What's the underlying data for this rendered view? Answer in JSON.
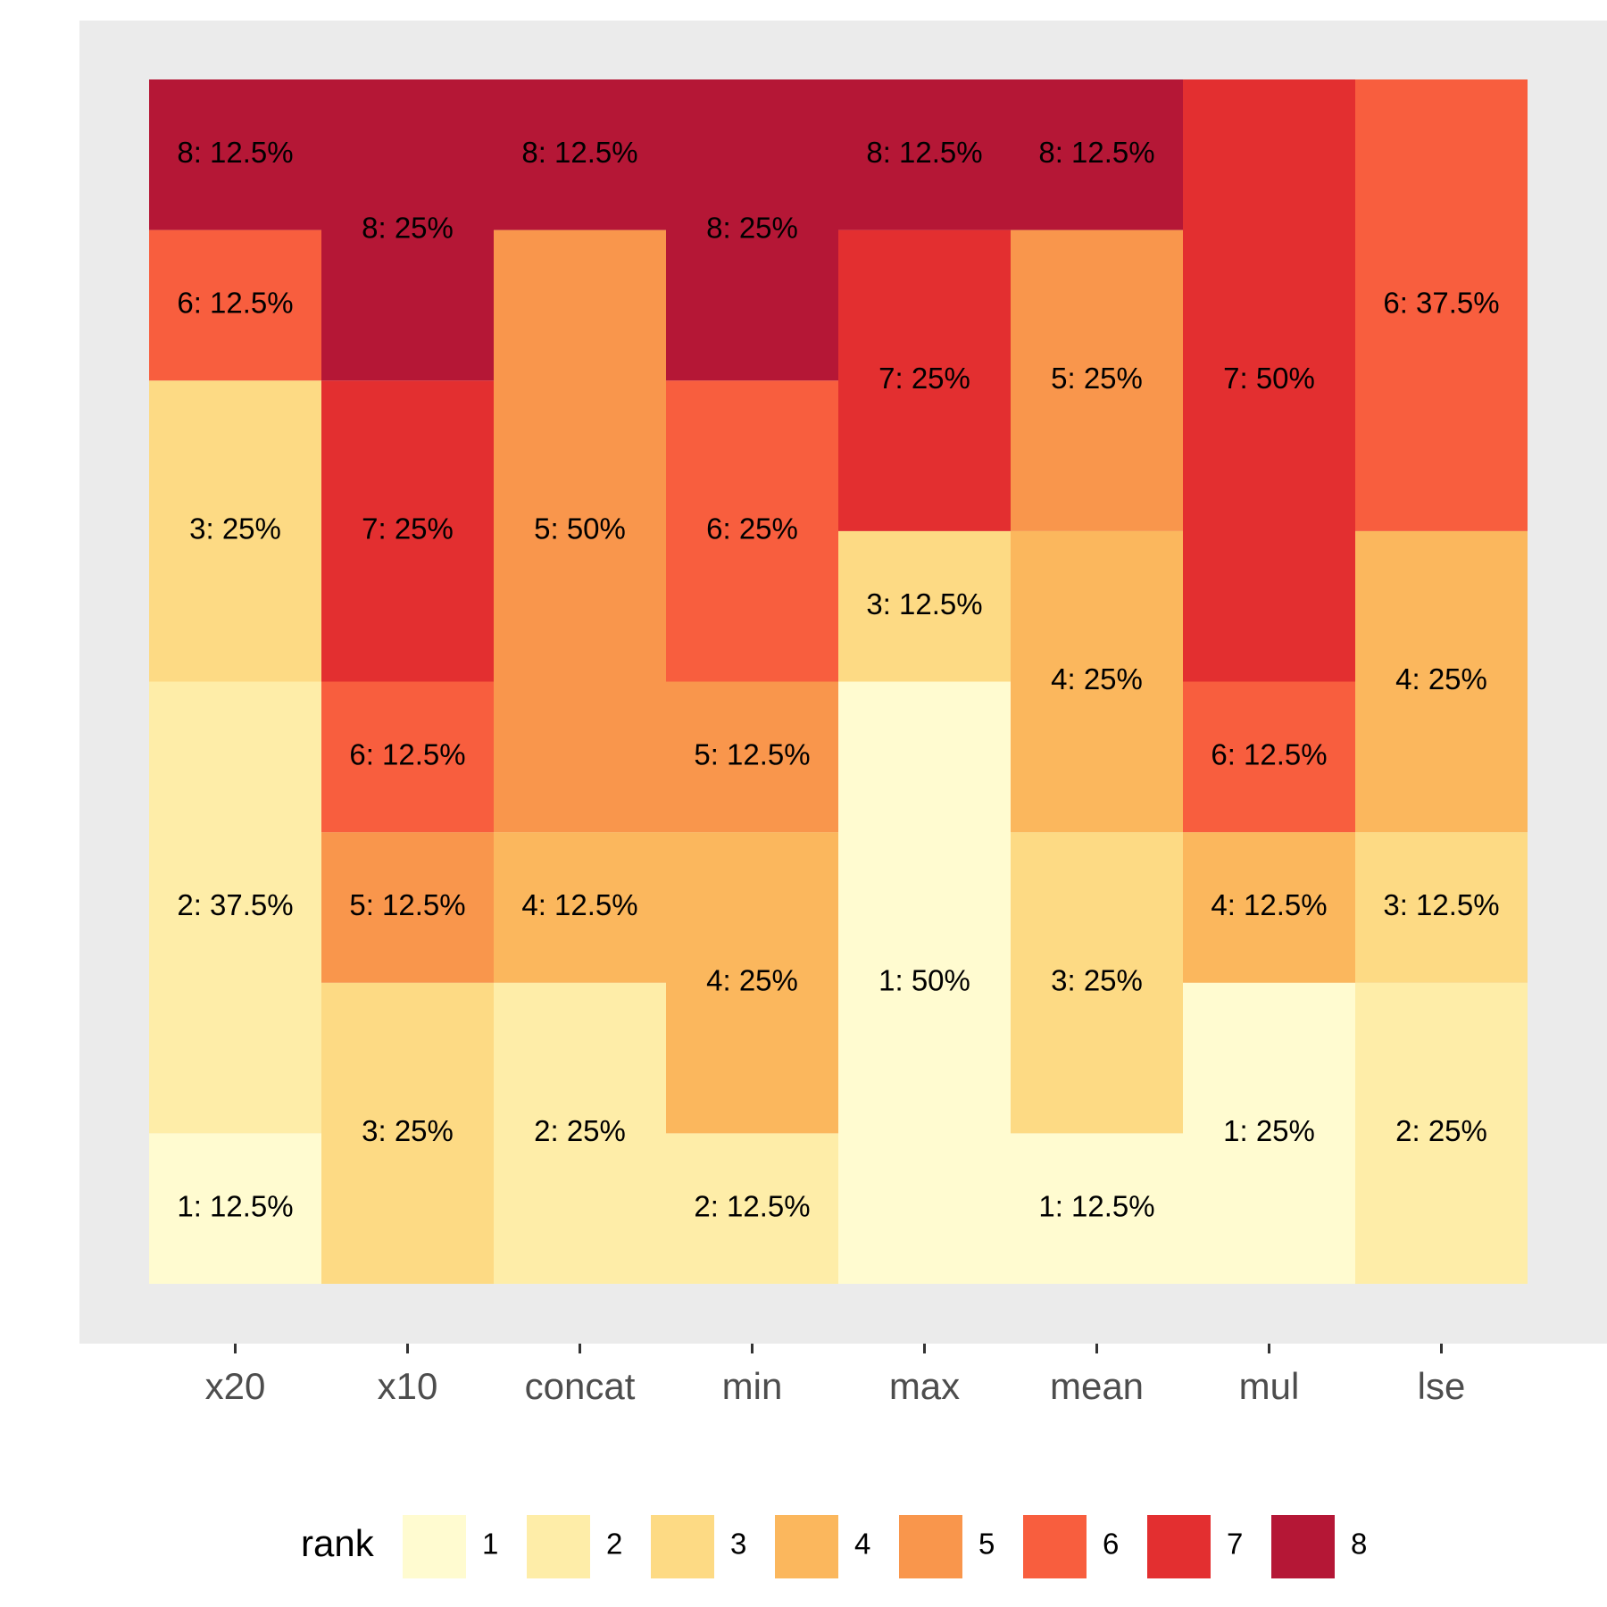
{
  "chart_data": {
    "type": "bar",
    "stacked": true,
    "value_unit": "%",
    "ylim": [
      0,
      100
    ],
    "grid": false,
    "legend_position": "bottom",
    "title": "",
    "xlabel": "",
    "ylabel": "",
    "categories": [
      "x20",
      "x10",
      "concat",
      "min",
      "max",
      "mean",
      "mul",
      "lse"
    ],
    "legend": {
      "title": "rank",
      "entries": [
        "1",
        "2",
        "3",
        "4",
        "5",
        "6",
        "7",
        "8"
      ]
    },
    "colors": {
      "1": "#FFFBD0",
      "2": "#FEEDA8",
      "3": "#FDDA84",
      "4": "#FBB75D",
      "5": "#F9964C",
      "6": "#F85E3E",
      "7": "#E32F30",
      "8": "#B51736",
      "panel_background": "#EBEBEB",
      "axis_text": "#4D4D4D"
    },
    "bars": [
      {
        "category": "x20",
        "segments": [
          {
            "rank": 1,
            "value": 12.5,
            "label": "1: 12.5%"
          },
          {
            "rank": 2,
            "value": 37.5,
            "label": "2: 37.5%"
          },
          {
            "rank": 3,
            "value": 25,
            "label": "3: 25%"
          },
          {
            "rank": 6,
            "value": 12.5,
            "label": "6: 12.5%"
          },
          {
            "rank": 8,
            "value": 12.5,
            "label": "8: 12.5%"
          }
        ]
      },
      {
        "category": "x10",
        "segments": [
          {
            "rank": 3,
            "value": 25,
            "label": "3: 25%"
          },
          {
            "rank": 5,
            "value": 12.5,
            "label": "5: 12.5%"
          },
          {
            "rank": 6,
            "value": 12.5,
            "label": "6: 12.5%"
          },
          {
            "rank": 7,
            "value": 25,
            "label": "7: 25%"
          },
          {
            "rank": 8,
            "value": 25,
            "label": "8: 25%"
          }
        ]
      },
      {
        "category": "concat",
        "segments": [
          {
            "rank": 2,
            "value": 25,
            "label": "2: 25%"
          },
          {
            "rank": 4,
            "value": 12.5,
            "label": "4: 12.5%"
          },
          {
            "rank": 5,
            "value": 50,
            "label": "5: 50%"
          },
          {
            "rank": 8,
            "value": 12.5,
            "label": "8: 12.5%"
          }
        ]
      },
      {
        "category": "min",
        "segments": [
          {
            "rank": 2,
            "value": 12.5,
            "label": "2: 12.5%"
          },
          {
            "rank": 4,
            "value": 25,
            "label": "4: 25%"
          },
          {
            "rank": 5,
            "value": 12.5,
            "label": "5: 12.5%"
          },
          {
            "rank": 6,
            "value": 25,
            "label": "6: 25%"
          },
          {
            "rank": 8,
            "value": 25,
            "label": "8: 25%"
          }
        ]
      },
      {
        "category": "max",
        "segments": [
          {
            "rank": 1,
            "value": 50,
            "label": "1: 50%"
          },
          {
            "rank": 3,
            "value": 12.5,
            "label": "3: 12.5%"
          },
          {
            "rank": 7,
            "value": 25,
            "label": "7: 25%"
          },
          {
            "rank": 8,
            "value": 12.5,
            "label": "8: 12.5%"
          }
        ]
      },
      {
        "category": "mean",
        "segments": [
          {
            "rank": 1,
            "value": 12.5,
            "label": "1: 12.5%"
          },
          {
            "rank": 3,
            "value": 25,
            "label": "3: 25%"
          },
          {
            "rank": 4,
            "value": 25,
            "label": "4: 25%"
          },
          {
            "rank": 5,
            "value": 25,
            "label": "5: 25%"
          },
          {
            "rank": 8,
            "value": 12.5,
            "label": "8: 12.5%"
          }
        ]
      },
      {
        "category": "mul",
        "segments": [
          {
            "rank": 1,
            "value": 25,
            "label": "1: 25%"
          },
          {
            "rank": 4,
            "value": 12.5,
            "label": "4: 12.5%"
          },
          {
            "rank": 6,
            "value": 12.5,
            "label": "6: 12.5%"
          },
          {
            "rank": 7,
            "value": 50,
            "label": "7: 50%"
          }
        ]
      },
      {
        "category": "lse",
        "segments": [
          {
            "rank": 2,
            "value": 25,
            "label": "2: 25%"
          },
          {
            "rank": 3,
            "value": 12.5,
            "label": "3: 12.5%"
          },
          {
            "rank": 4,
            "value": 25,
            "label": "4: 25%"
          },
          {
            "rank": 6,
            "value": 37.5,
            "label": "6: 37.5%"
          }
        ]
      }
    ]
  }
}
